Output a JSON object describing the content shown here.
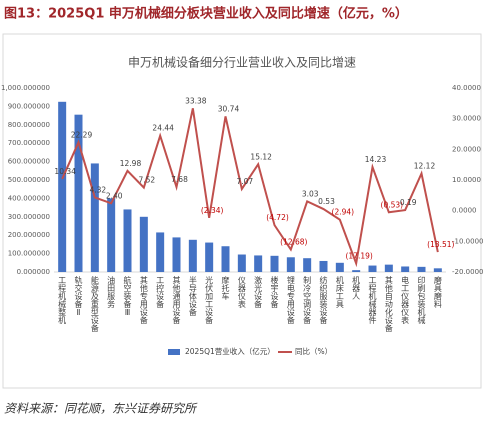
{
  "header": "图13：2025Q1 申万机械细分板块营业收入及同比增速（亿元，%）",
  "chart_data": {
    "type": "bar-line",
    "title": "申万机械设备细分行业营业收入及同比增速",
    "categories": [
      "工程机械整机",
      "轨交设备Ⅱ",
      "能源及重型设备",
      "油田服务",
      "航空装备Ⅲ",
      "其他专用设备",
      "工控设备",
      "其他通用设备",
      "半导体设备",
      "光伏加工设备",
      "摩托车",
      "仪器仪表",
      "激光设备",
      "楼宇设备",
      "锂电专用设备",
      "制冷空调设备",
      "纺织服装设备",
      "机床工具",
      "机器人",
      "工程机械器件",
      "其他自动化设备",
      "电工仪器仪表",
      "印刷包装机械",
      "磨具磨料"
    ],
    "series": [
      {
        "name": "2025Q1营业收入（亿元）",
        "type": "bar",
        "color": "#4472c4",
        "values": [
          925,
          855,
          590,
          400,
          340,
          300,
          215,
          188,
          175,
          160,
          140,
          95,
          90,
          88,
          80,
          75,
          60,
          50,
          10,
          35,
          40,
          30,
          28,
          20
        ]
      },
      {
        "name": "同比（%）",
        "type": "line",
        "axis": "y2",
        "color": "#c0504d",
        "values": [
          10.34,
          22.29,
          4.32,
          2.4,
          12.98,
          7.52,
          24.44,
          7.68,
          33.38,
          -2.34,
          30.74,
          7.07,
          15.12,
          -4.72,
          -12.68,
          3.03,
          0.53,
          -2.94,
          -17.19,
          14.23,
          -0.53,
          0.19,
          12.12,
          -13.51
        ],
        "value_labels": [
          "10.34",
          "22.29",
          "4.32",
          "2.40",
          "12.98",
          "7.52",
          "24.44",
          "7.68",
          "33.38",
          "(2.34)",
          "30.74",
          "7.07",
          "15.12",
          "(4.72)",
          "(12.68)",
          "3.03",
          "0.53",
          "(2.94)",
          "(17.19)",
          "14.23",
          "(0.53)",
          "0.19",
          "12.12",
          "(13.51)"
        ]
      }
    ],
    "ylim": [
      0,
      1000
    ],
    "yticks": [
      {
        "value": 0,
        "label": "0.000000"
      },
      {
        "value": 100,
        "label": "100.000000"
      },
      {
        "value": 200,
        "label": "200.000000"
      },
      {
        "value": 300,
        "label": "300.000000"
      },
      {
        "value": 400,
        "label": "400.000000"
      },
      {
        "value": 500,
        "label": "500.000000"
      },
      {
        "value": 600,
        "label": "600.000000"
      },
      {
        "value": 700,
        "label": "700.000000"
      },
      {
        "value": 800,
        "label": "800.000000"
      },
      {
        "value": 900,
        "label": "900.000000"
      },
      {
        "value": 1000,
        "label": "1,000.000000"
      }
    ],
    "y2lim": [
      -20,
      40
    ],
    "y2ticks": [
      {
        "value": -20,
        "label": "-20.0000"
      },
      {
        "value": -10,
        "label": "-10.0000"
      },
      {
        "value": 0,
        "label": "0.0000"
      },
      {
        "value": 10,
        "label": "10.0000"
      },
      {
        "value": 20,
        "label": "20.0000"
      },
      {
        "value": 30,
        "label": "30.0000"
      },
      {
        "value": 40,
        "label": "40.0000"
      }
    ],
    "legend": "bottom"
  },
  "source": "资料来源：同花顺，东兴证券研究所"
}
